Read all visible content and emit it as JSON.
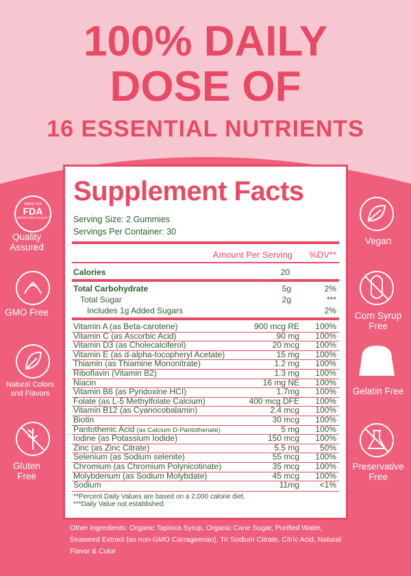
{
  "header": {
    "line1": "100% DAILY",
    "line2": "DOSE OF",
    "line3": "16 ESSENTIAL NUTRIENTS"
  },
  "fda_badge": {
    "top": "MADE IN A",
    "main": "FDA",
    "bottom": "INSPECTED FACILITY"
  },
  "left_badges": [
    "Quality Assured",
    "GMO Free",
    "Natural Colors and Flavors",
    "Gluten Free"
  ],
  "right_badges": [
    "Vegan",
    "Corn Syrup Free",
    "Gelatin Free",
    "Preservative Free"
  ],
  "facts": {
    "title": "Supplement Facts",
    "serving_size": "Serving Size: 2 Gummies",
    "servings_per_container": "Servings Per Container: 30",
    "amount_header": "Amount Per Serving",
    "dv_header": "%DV**",
    "calories": {
      "label": "Calories",
      "amount": "20"
    },
    "total_carbohydrate": {
      "label": "Total Carbohydrate",
      "amount": "5g",
      "dv": "2%"
    },
    "total_sugar": {
      "label": "Total Sugar",
      "amount": "2g",
      "dv": "***"
    },
    "added_sugars": {
      "label": "Includes 1g Added Sugars",
      "dv": "2%"
    },
    "nutrients": [
      {
        "name": "Vitamin A (as Beta-carotene)",
        "amount": "900 mcg RE",
        "dv": "100%"
      },
      {
        "name": "Vitamin C (as Ascorbic Acid)",
        "amount": "90 mg",
        "dv": "100%"
      },
      {
        "name": "Vitamin D3 (as Cholecalciferol)",
        "amount": "20 mcg",
        "dv": "100%"
      },
      {
        "name": "Vitamin E (as d-alpha-tocopheryl Acetate)",
        "amount": "15 mg",
        "dv": "100%"
      },
      {
        "name": "Thiamin (as Thiamine Mononitrate)",
        "amount": "1.2 mg",
        "dv": "100%"
      },
      {
        "name": "Riboflavin (Vitamin B2)",
        "amount": "1.3 mg",
        "dv": "100%"
      },
      {
        "name": "Niacin",
        "amount": "16 mg NE",
        "dv": "100%"
      },
      {
        "name": "Vitamin B6 (as Pyridoxine HCI)",
        "amount": "1.7mg",
        "dv": "100%"
      },
      {
        "name": "Folate (as L-5 Methylfolate Calcium)",
        "amount": "400 mcg DFE",
        "dv": "100%"
      },
      {
        "name": "Vitamin B12 (as Cyanocobalamin)",
        "amount": "2.4 mcg",
        "dv": "100%"
      },
      {
        "name": "Biotin",
        "amount": "30 mcg",
        "dv": "100%"
      },
      {
        "name": "Pantothenic Acid",
        "note": "(as Calcium D-Pantothenate)",
        "amount": "5 mg",
        "dv": "100%"
      },
      {
        "name": "Iodine (as Potassium Iodide)",
        "amount": "150 mcg",
        "dv": "100%"
      },
      {
        "name": "Zinc (as Zinc Citrate)",
        "amount": "5.5 mg",
        "dv": "50%"
      },
      {
        "name": "Selenium (as Sodium selenite)",
        "amount": "55 mcg",
        "dv": "100%"
      },
      {
        "name": "Chromium (as Chromium Polynicotinate)",
        "amount": "35 mcg",
        "dv": "100%"
      },
      {
        "name": "Molybdenum (as Sodium Molybdate)",
        "amount": "45 mcg",
        "dv": "100%"
      },
      {
        "name": "Sodium",
        "amount": "11mg",
        "dv": "<1%"
      }
    ],
    "footnotes": [
      "**Percent Daily Values are based on a 2,000 calorie diet.",
      "***Daily Value not established."
    ]
  },
  "other_ingredients": "Other Ingredients: Organic Tapioca Syrup, Organic Cane Sugar, Purified Water, Seaweed Extract (as non-GMO Carrageenan), Tri Sodium Citrate, Citric Acid, Natural Flavor & Color"
}
